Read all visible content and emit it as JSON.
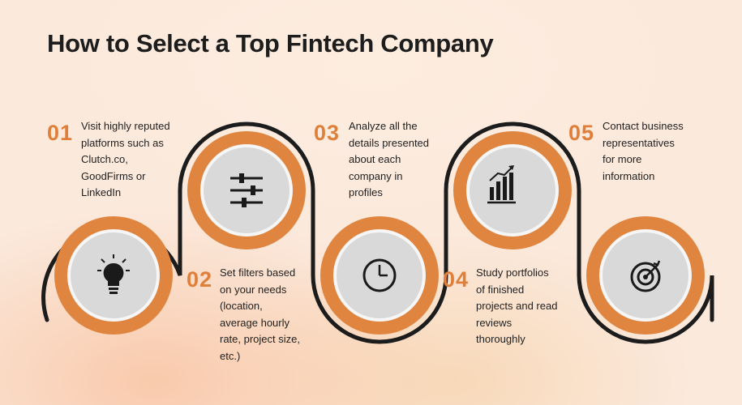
{
  "title": "How to Select a Top Fintech Company",
  "colors": {
    "accent": "#e07f3a",
    "ring": "#df8540",
    "inner": "#d9d9d9",
    "line": "#1c1c1c",
    "text": "#1f1f1f"
  },
  "steps": [
    {
      "number": "01",
      "text": "Visit highly reputed\nplatforms such as\nClutch.co,\nGoodFirms or\nLinkedIn",
      "icon": "lightbulb-icon"
    },
    {
      "number": "02",
      "text": "Set filters based\non your needs\n(location,\naverage hourly\nrate, project size,\netc.)",
      "icon": "sliders-icon"
    },
    {
      "number": "03",
      "text": "Analyze all the\ndetails presented\nabout each\ncompany in\nprofiles",
      "icon": "clock-icon"
    },
    {
      "number": "04",
      "text": "Study portfolios\nof finished\nprojects and read\nreviews\nthoroughly",
      "icon": "bar-chart-icon"
    },
    {
      "number": "05",
      "text": "Contact business\nrepresentatives\nfor more\ninformation",
      "icon": "target-icon"
    }
  ]
}
